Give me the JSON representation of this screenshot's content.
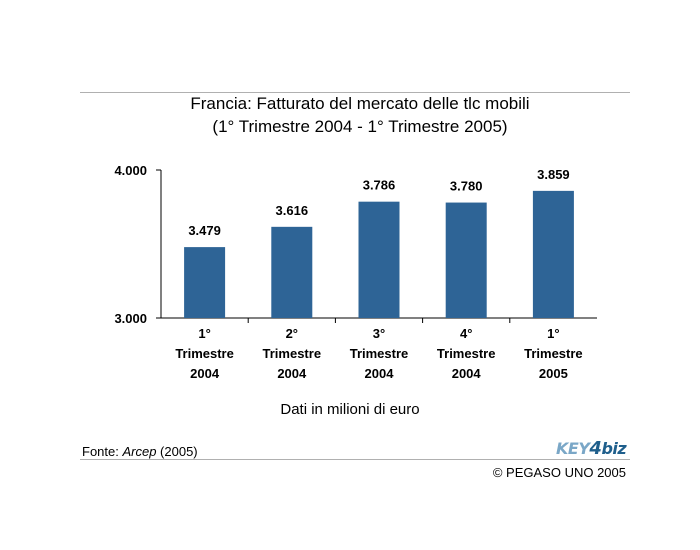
{
  "title_line1": "Francia: Fatturato del mercato delle tlc mobili",
  "title_line2": "(1° Trimestre 2004 - 1° Trimestre 2005)",
  "note": "Dati in milioni di euro",
  "source_prefix": "Fonte: ",
  "source_name": "Arcep",
  "source_suffix": " (2005)",
  "copyright": "© PEGASO UNO 2005",
  "logo_text": "KEY4biz",
  "colors": {
    "bar": "#2e6496",
    "axis": "#000000",
    "rule": "#b0b0b0"
  },
  "chart_data": {
    "type": "bar",
    "title": "Francia: Fatturato del mercato delle tlc mobili (1° Trimestre 2004 - 1° Trimestre 2005)",
    "categories": [
      [
        "1°",
        "Trimestre",
        "2004"
      ],
      [
        "2°",
        "Trimestre",
        "2004"
      ],
      [
        "3°",
        "Trimestre",
        "2004"
      ],
      [
        "4°",
        "Trimestre",
        "2004"
      ],
      [
        "1°",
        "Trimestre",
        "2005"
      ]
    ],
    "values": [
      3479,
      3616,
      3786,
      3780,
      3859
    ],
    "value_labels": [
      "3.479",
      "3.616",
      "3.786",
      "3.780",
      "3.859"
    ],
    "ylim": [
      3000,
      4000
    ],
    "yticks": [
      3000,
      4000
    ],
    "ytick_labels": [
      "3.000",
      "4.000"
    ],
    "xlabel": "",
    "ylabel": "",
    "grid": false,
    "legend": "none"
  }
}
